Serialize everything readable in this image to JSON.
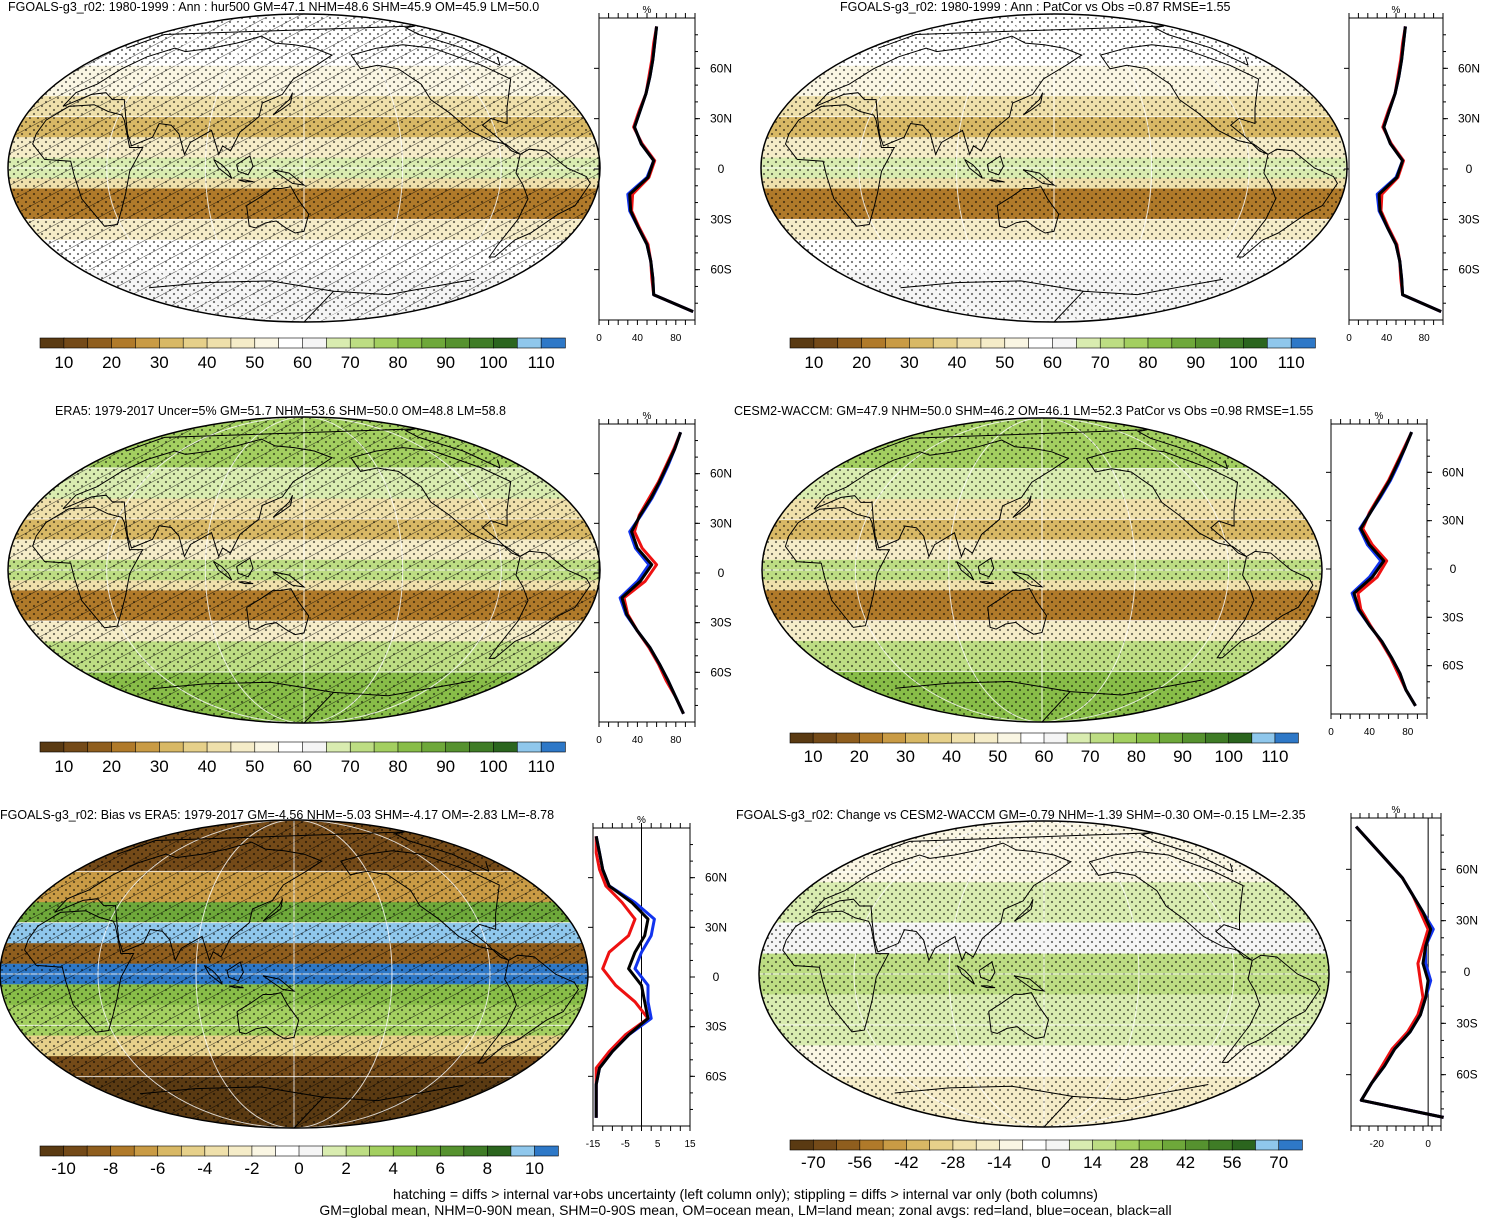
{
  "panels": [
    {
      "id": "p1",
      "title": "FGOALS-g3_r02: 1980-1999 : Ann : hur500 GM=47.1 NHM=48.6 SHM=45.9 OM=45.9 LM=50.0",
      "map_kind": "abs",
      "hatch": true,
      "colorbar_labels": [
        "10",
        "20",
        "30",
        "40",
        "50",
        "60",
        "70",
        "80",
        "90",
        "100",
        "110"
      ],
      "colorbar_colors": [
        "#5a3a12",
        "#744a18",
        "#8f5e1e",
        "#b07a2a",
        "#c99b45",
        "#d8b865",
        "#e6d08a",
        "#efe0ab",
        "#f5ecc8",
        "#faf6e3",
        "#ffffff",
        "#f5f5f5",
        "#d9ecb0",
        "#bddd83",
        "#a3cf60",
        "#88bd48",
        "#6ea83a",
        "#56922f",
        "#3f7c26",
        "#2b651e",
        "#8fc7ec",
        "#2e78c7"
      ],
      "profile_unit": "%",
      "profile_xticks": [
        "0",
        "40",
        "80"
      ],
      "profile_lat_ticks": [
        "60N",
        "30N",
        "0",
        "30S",
        "60S"
      ],
      "zonal_profiles": {
        "lat": [
          85,
          75,
          65,
          55,
          45,
          35,
          25,
          15,
          5,
          -5,
          -15,
          -25,
          -35,
          -45,
          -55,
          -65,
          -75,
          -85
        ],
        "land": [
          60,
          57,
          55,
          52,
          49,
          42,
          36,
          45,
          58,
          52,
          35,
          34,
          42,
          51,
          54,
          55,
          57,
          98
        ],
        "ocean": [
          60,
          58,
          56,
          53,
          49,
          43,
          37,
          44,
          57,
          50,
          30,
          32,
          41,
          50,
          54,
          56,
          57,
          98
        ],
        "all": [
          60,
          58,
          56,
          53,
          49,
          43,
          37,
          44,
          57,
          51,
          32,
          33,
          41,
          50,
          54,
          56,
          57,
          98
        ]
      }
    },
    {
      "id": "p2",
      "title": "FGOALS-g3_r02: 1980-1999 : Ann : PatCor vs Obs =0.87 RMSE=1.55",
      "map_kind": "abs",
      "hatch": false,
      "colorbar_labels": [
        "10",
        "20",
        "30",
        "40",
        "50",
        "60",
        "70",
        "80",
        "90",
        "100",
        "110"
      ],
      "colorbar_colors": [
        "#5a3a12",
        "#744a18",
        "#8f5e1e",
        "#b07a2a",
        "#c99b45",
        "#d8b865",
        "#e6d08a",
        "#efe0ab",
        "#f5ecc8",
        "#faf6e3",
        "#ffffff",
        "#f5f5f5",
        "#d9ecb0",
        "#bddd83",
        "#a3cf60",
        "#88bd48",
        "#6ea83a",
        "#56922f",
        "#3f7c26",
        "#2b651e",
        "#8fc7ec",
        "#2e78c7"
      ],
      "profile_unit": "%",
      "profile_xticks": [
        "0",
        "40",
        "80"
      ],
      "profile_lat_ticks": [
        "60N",
        "30N",
        "0",
        "30S",
        "60S"
      ],
      "zonal_profiles": {
        "lat": [
          85,
          75,
          65,
          55,
          45,
          35,
          25,
          15,
          5,
          -5,
          -15,
          -25,
          -35,
          -45,
          -55,
          -65,
          -75,
          -85
        ],
        "land": [
          60,
          57,
          55,
          52,
          49,
          42,
          36,
          45,
          58,
          52,
          35,
          34,
          42,
          51,
          54,
          55,
          57,
          98
        ],
        "ocean": [
          60,
          58,
          56,
          53,
          49,
          43,
          37,
          44,
          57,
          50,
          30,
          32,
          41,
          50,
          54,
          56,
          57,
          98
        ],
        "all": [
          60,
          58,
          56,
          53,
          49,
          43,
          37,
          44,
          57,
          51,
          32,
          33,
          41,
          50,
          54,
          56,
          57,
          98
        ]
      }
    },
    {
      "id": "p3",
      "title": "ERA5: 1979-2017 Uncer=5% GM=51.7 NHM=53.6 SHM=50.0 OM=48.8 LM=58.8",
      "map_kind": "abs_green",
      "hatch": true,
      "colorbar_labels": [
        "10",
        "20",
        "30",
        "40",
        "50",
        "60",
        "70",
        "80",
        "90",
        "100",
        "110"
      ],
      "colorbar_colors": [
        "#5a3a12",
        "#744a18",
        "#8f5e1e",
        "#b07a2a",
        "#c99b45",
        "#d8b865",
        "#e6d08a",
        "#efe0ab",
        "#f5ecc8",
        "#faf6e3",
        "#ffffff",
        "#f5f5f5",
        "#d9ecb0",
        "#bddd83",
        "#a3cf60",
        "#88bd48",
        "#6ea83a",
        "#56922f",
        "#3f7c26",
        "#2b651e",
        "#8fc7ec",
        "#2e78c7"
      ],
      "profile_unit": "%",
      "profile_xticks": [
        "0",
        "40",
        "80"
      ],
      "profile_lat_ticks": [
        "60N",
        "30N",
        "0",
        "30S",
        "60S"
      ],
      "zonal_profiles": {
        "lat": [
          85,
          75,
          65,
          55,
          45,
          35,
          25,
          15,
          5,
          -5,
          -15,
          -25,
          -35,
          -45,
          -55,
          -65,
          -75,
          -85
        ],
        "land": [
          85,
          78,
          70,
          62,
          52,
          42,
          37,
          45,
          60,
          48,
          26,
          30,
          40,
          52,
          62,
          70,
          80,
          88
        ],
        "ocean": [
          85,
          79,
          72,
          64,
          55,
          44,
          32,
          38,
          52,
          40,
          22,
          28,
          40,
          53,
          63,
          72,
          80,
          88
        ],
        "all": [
          85,
          79,
          71,
          63,
          54,
          43,
          34,
          40,
          55,
          43,
          24,
          29,
          40,
          53,
          63,
          72,
          80,
          88
        ]
      }
    },
    {
      "id": "p4",
      "title": "CESM2-WACCM: GM=47.9 NHM=50.0 SHM=46.2 OM=46.1 LM=52.3 PatCor vs Obs =0.98 RMSE=1.55",
      "map_kind": "abs_green",
      "hatch": false,
      "colorbar_labels": [
        "10",
        "20",
        "30",
        "40",
        "50",
        "60",
        "70",
        "80",
        "90",
        "100",
        "110"
      ],
      "colorbar_colors": [
        "#5a3a12",
        "#744a18",
        "#8f5e1e",
        "#b07a2a",
        "#c99b45",
        "#d8b865",
        "#e6d08a",
        "#efe0ab",
        "#f5ecc8",
        "#faf6e3",
        "#ffffff",
        "#f5f5f5",
        "#d9ecb0",
        "#bddd83",
        "#a3cf60",
        "#88bd48",
        "#6ea83a",
        "#56922f",
        "#3f7c26",
        "#2b651e",
        "#8fc7ec",
        "#2e78c7"
      ],
      "profile_unit": "%",
      "profile_xticks": [
        "0",
        "40",
        "80"
      ],
      "profile_lat_ticks": [
        "60N",
        "30N",
        "0",
        "30S",
        "60S"
      ],
      "zonal_profiles": {
        "lat": [
          85,
          75,
          65,
          55,
          45,
          35,
          25,
          15,
          5,
          -5,
          -15,
          -25,
          -35,
          -45,
          -55,
          -65,
          -75,
          -85
        ],
        "land": [
          84,
          76,
          68,
          60,
          50,
          40,
          33,
          43,
          58,
          48,
          28,
          31,
          41,
          52,
          62,
          70,
          78,
          88
        ],
        "ocean": [
          84,
          77,
          70,
          62,
          52,
          41,
          30,
          38,
          52,
          40,
          22,
          28,
          40,
          53,
          63,
          72,
          78,
          88
        ],
        "all": [
          84,
          77,
          69,
          61,
          51,
          41,
          31,
          40,
          55,
          43,
          24,
          29,
          40,
          53,
          63,
          72,
          78,
          88
        ]
      }
    },
    {
      "id": "p5",
      "title": "FGOALS-g3_r02: Bias vs ERA5: 1979-2017 GM=-4.56 NHM=-5.03 SHM=-4.17 OM=-2.83 LM=-8.78",
      "map_kind": "bias",
      "hatch": true,
      "colorbar_labels": [
        "-10",
        "-8",
        "-6",
        "-4",
        "-2",
        "0",
        "2",
        "4",
        "6",
        "8",
        "10"
      ],
      "colorbar_colors": [
        "#5a3a12",
        "#744a18",
        "#8f5e1e",
        "#b07a2a",
        "#c99b45",
        "#d8b865",
        "#e6d08a",
        "#efe0ab",
        "#f5ecc8",
        "#faf6e3",
        "#ffffff",
        "#f5f5f5",
        "#d9ecb0",
        "#bddd83",
        "#a3cf60",
        "#88bd48",
        "#6ea83a",
        "#56922f",
        "#3f7c26",
        "#2b651e",
        "#8fc7ec",
        "#2e78c7"
      ],
      "profile_unit": "%",
      "profile_xticks": [
        "-15",
        "-5",
        "5",
        "15"
      ],
      "profile_lat_ticks": [
        "60N",
        "30N",
        "0",
        "30S",
        "60S"
      ],
      "zonal_profiles": {
        "lat": [
          85,
          75,
          65,
          55,
          45,
          35,
          25,
          15,
          5,
          -5,
          -15,
          -25,
          -35,
          -45,
          -55,
          -65,
          -75,
          -85
        ],
        "land": [
          -14,
          -14,
          -13,
          -11,
          -6,
          -2,
          -4,
          -10,
          -12,
          -8,
          -2,
          2,
          -5,
          -10,
          -14,
          -14,
          -14,
          -14
        ],
        "ocean": [
          -14,
          -13,
          -12,
          -10,
          -2,
          4,
          3,
          0,
          -2,
          2,
          2,
          3,
          -4,
          -9,
          -13,
          -14,
          -14,
          -14
        ],
        "all": [
          -14,
          -13,
          -12,
          -10,
          -3,
          2,
          1,
          -2,
          -4,
          0,
          1,
          2,
          -4,
          -9,
          -13,
          -14,
          -14,
          -14
        ]
      }
    },
    {
      "id": "p6",
      "title": "FGOALS-g3_r02: Change vs CESM2-WACCM GM=-0.79 NHM=-1.39 SHM=-0.30 OM=-0.15 LM=-2.35",
      "map_kind": "change",
      "hatch": false,
      "colorbar_labels": [
        "-70",
        "-56",
        "-42",
        "-28",
        "-14",
        "0",
        "14",
        "28",
        "42",
        "56",
        "70"
      ],
      "colorbar_colors": [
        "#5a3a12",
        "#744a18",
        "#8f5e1e",
        "#b07a2a",
        "#c99b45",
        "#d8b865",
        "#e6d08a",
        "#efe0ab",
        "#f5ecc8",
        "#faf6e3",
        "#ffffff",
        "#f5f5f5",
        "#d9ecb0",
        "#bddd83",
        "#a3cf60",
        "#88bd48",
        "#6ea83a",
        "#56922f",
        "#3f7c26",
        "#2b651e",
        "#8fc7ec",
        "#2e78c7"
      ],
      "profile_unit": "%",
      "profile_xticks": [
        "-20",
        "0"
      ],
      "profile_lat_ticks": [
        "60N",
        "30N",
        "0",
        "30S",
        "60S"
      ],
      "zonal_profiles": {
        "lat": [
          85,
          75,
          65,
          55,
          45,
          35,
          25,
          15,
          5,
          -5,
          -15,
          -25,
          -35,
          -45,
          -55,
          -65,
          -75,
          -85
        ],
        "land": [
          -28,
          -22,
          -16,
          -10,
          -6,
          -3,
          0,
          -2,
          -4,
          -3,
          -2,
          -4,
          -8,
          -14,
          -18,
          -22,
          -26,
          6
        ],
        "ocean": [
          -28,
          -22,
          -16,
          -10,
          -6,
          -2,
          2,
          -1,
          -1,
          1,
          -1,
          -3,
          -7,
          -13,
          -17,
          -22,
          -26,
          6
        ],
        "all": [
          -28,
          -22,
          -16,
          -10,
          -6,
          -2,
          1,
          -1,
          -2,
          0,
          -1,
          -3,
          -7,
          -13,
          -17,
          -22,
          -26,
          6
        ]
      }
    }
  ],
  "footer": {
    "line1": "hatching = diffs > internal var+obs uncertainty (left column only); stippling = diffs > internal var only (both columns)",
    "line2": "GM=global mean, NHM=0-90N mean, SHM=0-90S mean, OM=ocean mean, LM=land mean; zonal avgs: red=land, blue=ocean, black=all"
  },
  "colors": {
    "land_line": "#ee1111",
    "ocean_line": "#1133ee",
    "all_line": "#000000"
  }
}
